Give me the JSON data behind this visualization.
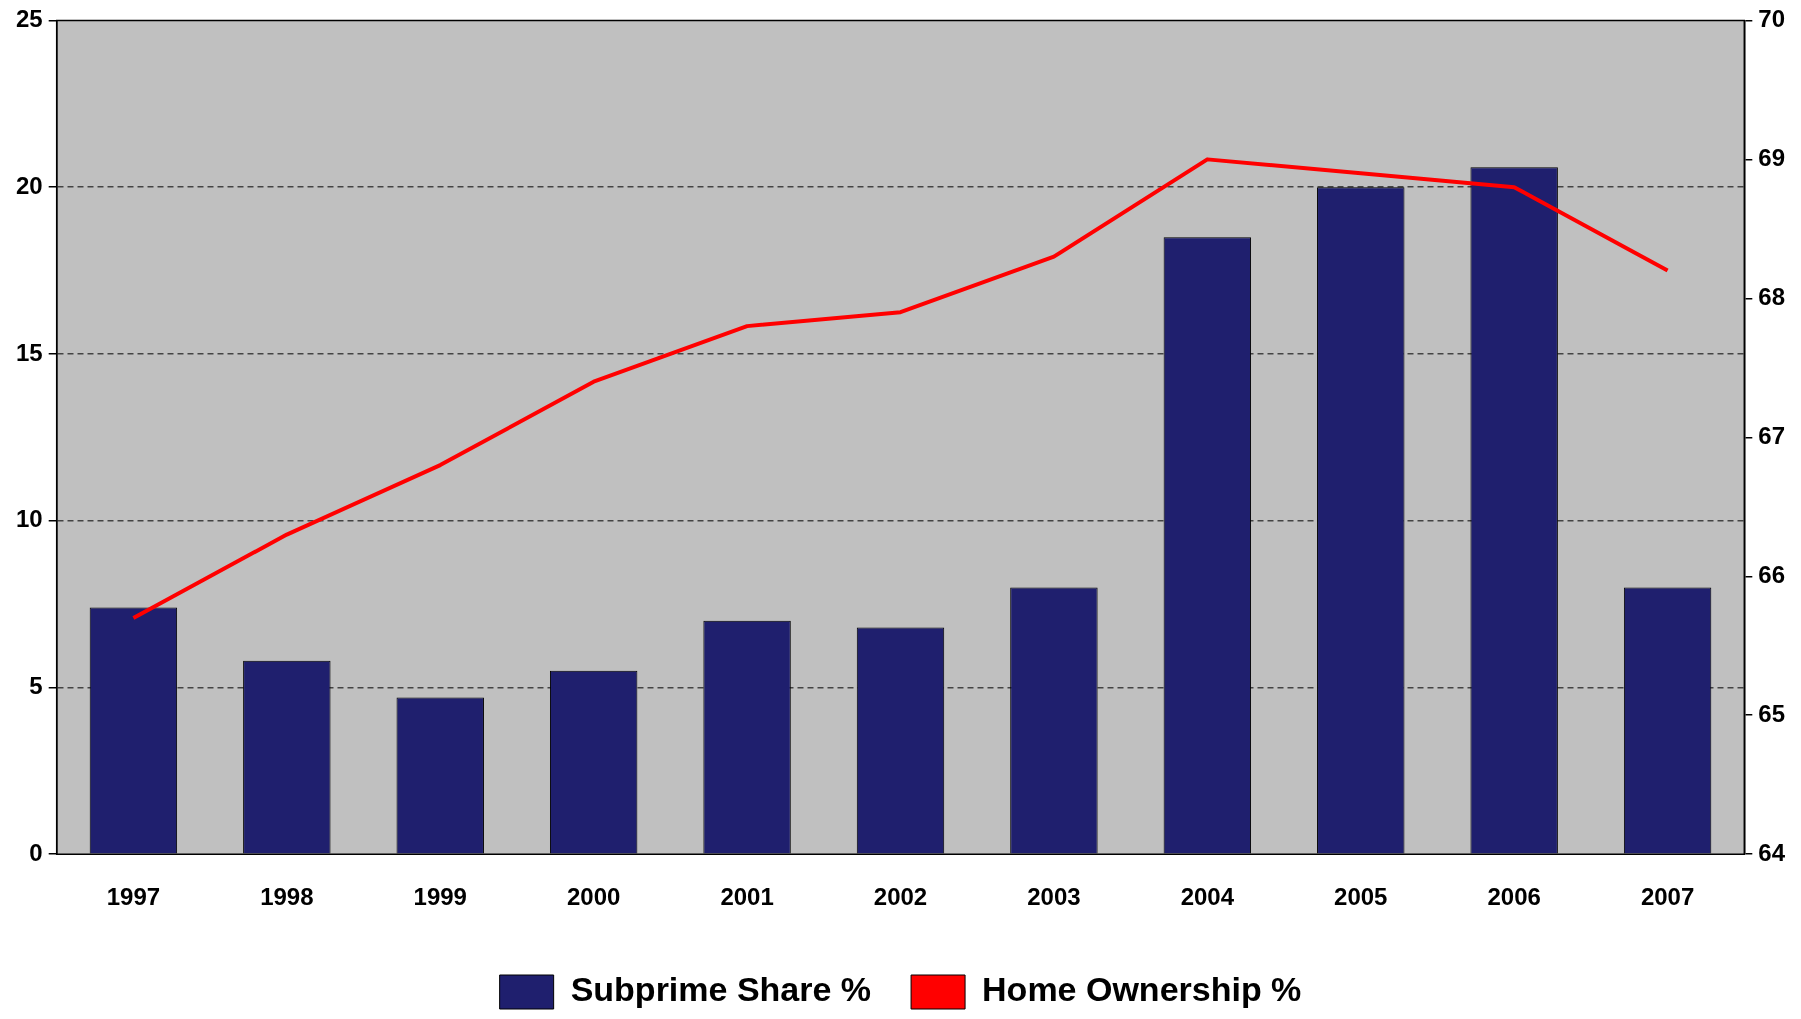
{
  "chart_data": {
    "type": "bar",
    "categories": [
      "1997",
      "1998",
      "1999",
      "2000",
      "2001",
      "2002",
      "2003",
      "2004",
      "2005",
      "2006",
      "2007"
    ],
    "series": [
      {
        "name": "Subprime Share %",
        "color": "#1f1f6e",
        "values": [
          7.4,
          5.8,
          4.7,
          5.5,
          7.0,
          6.8,
          8.0,
          18.5,
          20.0,
          20.6,
          8.0
        ]
      },
      {
        "name": "Home Ownership %",
        "type": "line",
        "axis": "y2",
        "color": "#ff0000",
        "values": [
          65.7,
          66.3,
          66.8,
          67.4,
          67.8,
          67.9,
          68.3,
          69.0,
          68.9,
          68.8,
          68.2
        ]
      }
    ],
    "ylim": [
      0,
      25
    ],
    "yticks": [
      0,
      5,
      10,
      15,
      20,
      25
    ],
    "y2lim": [
      64,
      70
    ],
    "y2ticks": [
      64,
      65,
      66,
      67,
      68,
      69,
      70
    ],
    "grid": "y",
    "legend": "bottom",
    "marker": "none",
    "line_style": "solid"
  }
}
